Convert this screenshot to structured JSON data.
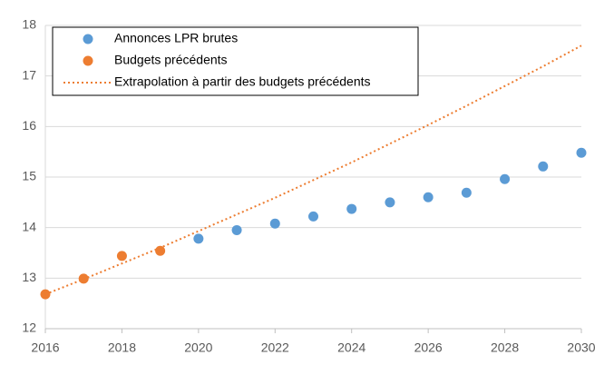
{
  "chart_data": {
    "type": "scatter",
    "x": [
      2016,
      2017,
      2018,
      2019,
      2020,
      2021,
      2022,
      2023,
      2024,
      2025,
      2026,
      2027,
      2028,
      2029,
      2030
    ],
    "series": [
      {
        "name": "Annonces LPR brutes",
        "type": "scatter",
        "color": "#5b9bd5",
        "values": [
          null,
          null,
          null,
          null,
          13.78,
          13.95,
          14.08,
          14.22,
          14.37,
          14.5,
          14.6,
          14.69,
          14.96,
          15.21,
          15.48
        ]
      },
      {
        "name": "Budgets précédents",
        "type": "scatter",
        "color": "#ed7d31",
        "values": [
          12.68,
          12.99,
          13.44,
          13.54,
          null,
          null,
          null,
          null,
          null,
          null,
          null,
          null,
          null,
          null,
          null
        ]
      },
      {
        "name": "Extrapolation à partir des budgets précédents",
        "type": "line",
        "dashed": true,
        "color": "#ed7d31",
        "values": [
          12.68,
          12.98,
          13.29,
          13.6,
          13.93,
          14.26,
          14.59,
          14.94,
          15.29,
          15.66,
          16.03,
          16.41,
          16.8,
          17.19,
          17.6
        ]
      }
    ],
    "xlim": [
      2016,
      2030
    ],
    "xticks": [
      2016,
      2018,
      2020,
      2022,
      2024,
      2026,
      2028,
      2030
    ],
    "ylim": [
      12,
      18
    ],
    "yticks": [
      12,
      13,
      14,
      15,
      16,
      17,
      18
    ],
    "grid": true,
    "legend": "top-left"
  }
}
